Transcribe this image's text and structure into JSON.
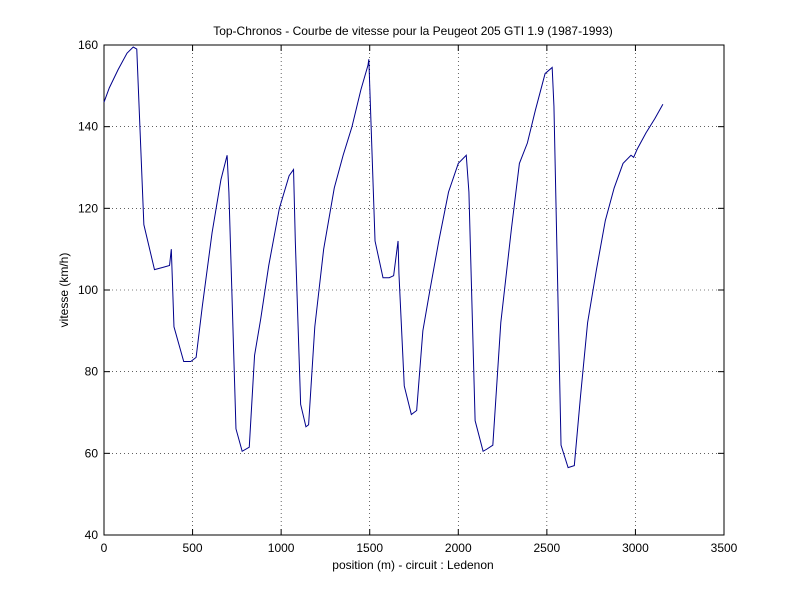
{
  "chart_data": {
    "type": "line",
    "title": "Top-Chronos - Courbe de vitesse pour la Peugeot 205 GTI 1.9 (1987-1993)",
    "xlabel": "position (m) - circuit : Ledenon",
    "ylabel": "vitesse (km/h)",
    "xlim": [
      0,
      3500
    ],
    "ylim": [
      40,
      160
    ],
    "xticks": [
      0,
      500,
      1000,
      1500,
      2000,
      2500,
      3000,
      3500
    ],
    "yticks": [
      40,
      60,
      80,
      100,
      120,
      140,
      160
    ],
    "grid": true,
    "line_color": "#00008b",
    "series": [
      {
        "x": [
          0,
          30,
          80,
          130,
          165,
          185,
          225,
          285,
          330,
          370,
          380,
          395,
          450,
          490,
          520,
          555,
          610,
          660,
          695,
          705,
          745,
          780,
          820,
          850,
          885,
          930,
          990,
          1045,
          1070,
          1080,
          1110,
          1140,
          1155,
          1190,
          1240,
          1300,
          1350,
          1400,
          1450,
          1490,
          1495,
          1530,
          1575,
          1610,
          1635,
          1660,
          1665,
          1695,
          1735,
          1765,
          1800,
          1840,
          1890,
          1945,
          2000,
          2045,
          2060,
          2095,
          2140,
          2160,
          2195,
          2240,
          2300,
          2345,
          2390,
          2435,
          2490,
          2530,
          2540,
          2580,
          2620,
          2655,
          2690,
          2730,
          2780,
          2830,
          2880,
          2930,
          2975,
          2990,
          3010,
          3060,
          3110,
          3155
        ],
        "y": [
          146,
          149.5,
          154,
          158,
          159.5,
          159,
          116,
          105,
          105.5,
          106,
          110,
          91,
          82.5,
          82.5,
          83.5,
          96,
          114,
          127,
          133,
          124,
          66,
          60.5,
          61.5,
          84,
          93,
          106,
          120,
          128,
          129.5,
          112,
          72,
          66.5,
          67,
          91,
          110,
          125,
          133,
          140,
          149,
          155,
          156.5,
          112,
          103,
          103,
          103.5,
          112,
          104,
          76.5,
          69.5,
          70.5,
          90,
          100,
          112,
          124,
          131,
          133,
          124,
          68,
          60.5,
          61,
          62,
          92,
          115,
          131,
          136,
          144,
          153,
          154.5,
          145,
          62,
          56.5,
          57,
          74,
          92,
          105,
          117,
          125,
          131,
          133,
          132.5,
          134.5,
          138.5,
          142,
          145.5
        ]
      }
    ]
  }
}
